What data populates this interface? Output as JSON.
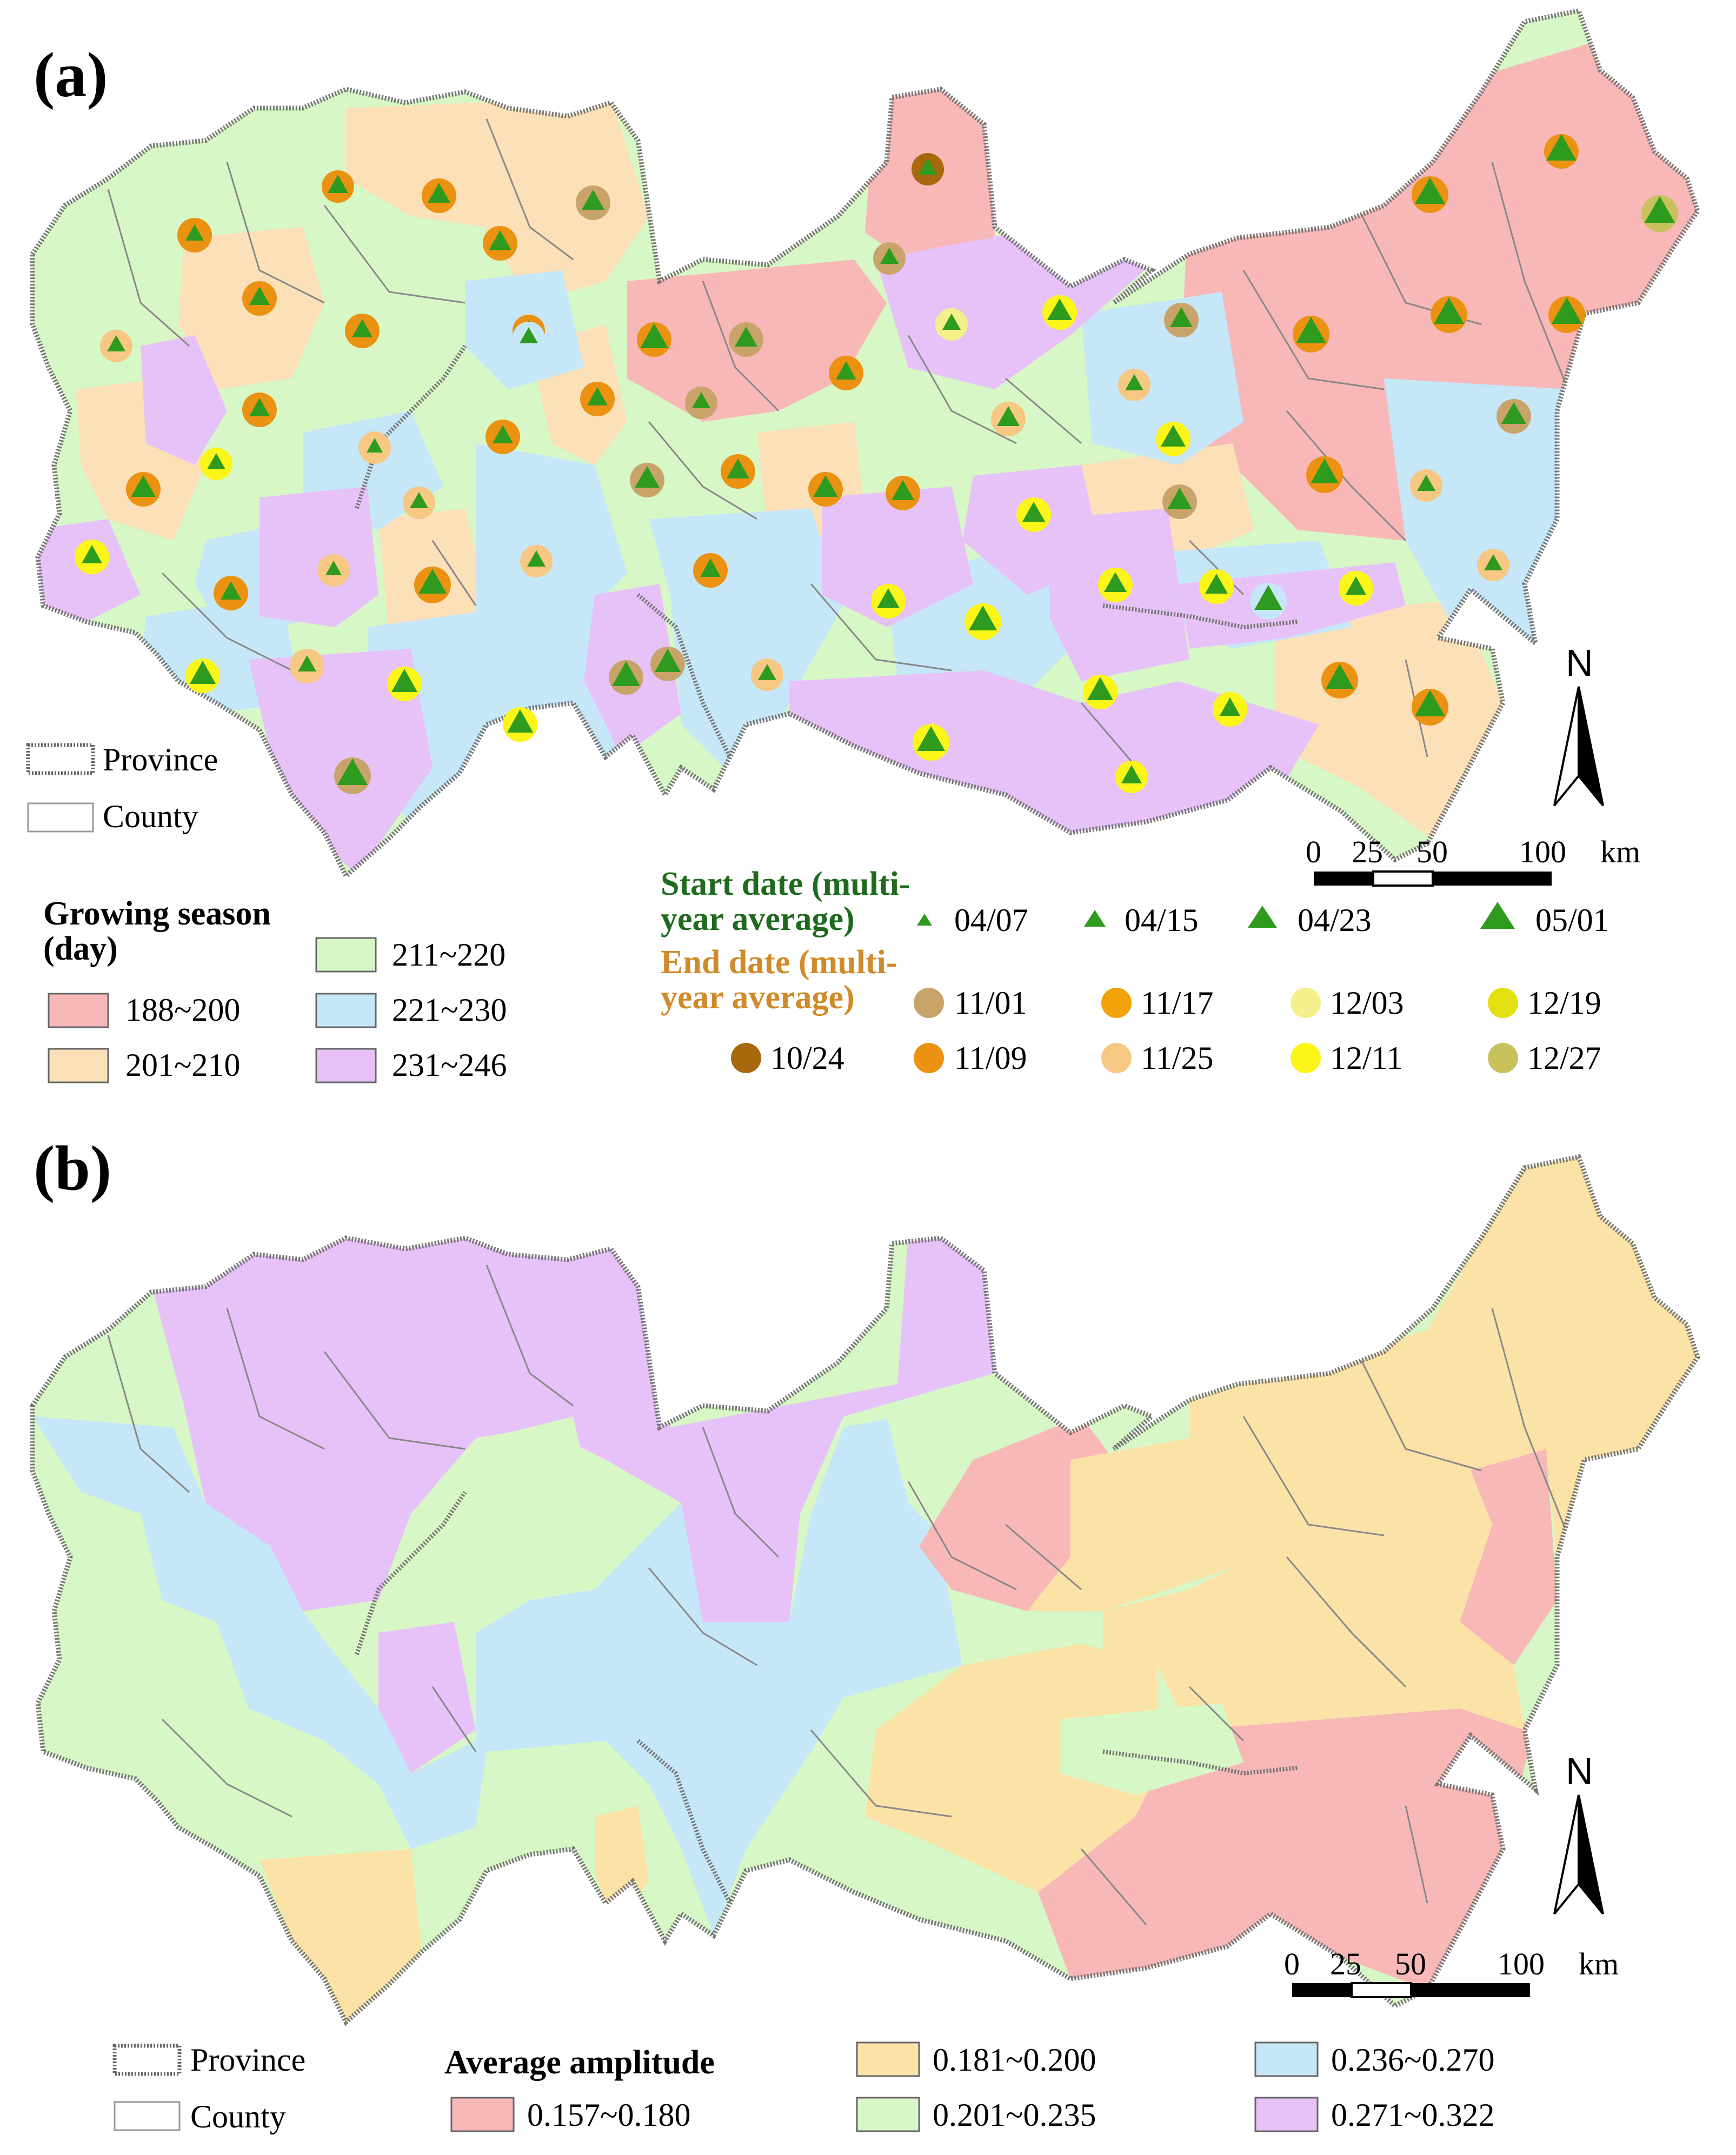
{
  "panel_a": {
    "label": "(a)",
    "legend_boundary": {
      "province": "Province",
      "county": "County"
    },
    "growing_season": {
      "title_line1": "Growing season",
      "title_line2": "(day)",
      "classes": [
        {
          "label": "188~200",
          "color": "#F8B8B8"
        },
        {
          "label": "201~210",
          "color": "#FBE0B8"
        },
        {
          "label": "211~220",
          "color": "#D8F7C6"
        },
        {
          "label": "221~230",
          "color": "#C6E7F8"
        },
        {
          "label": "231~246",
          "color": "#E7C2F8"
        }
      ]
    },
    "start_date": {
      "title_line1": "Start date (multi-",
      "title_line2": "year average)",
      "title_color": "#1E6B1E",
      "marker_color": "#2E9B1E",
      "items": [
        "04/07",
        "04/15",
        "04/23",
        "05/01"
      ]
    },
    "end_date": {
      "title_line1": "End date (multi-",
      "title_line2": "year average)",
      "title_color": "#D08A2A",
      "items": [
        {
          "label": "11/01",
          "color": "#C9A46A"
        },
        {
          "label": "11/17",
          "color": "#F2A20A"
        },
        {
          "label": "12/03",
          "color": "#F4F08C"
        },
        {
          "label": "12/19",
          "color": "#E3E012"
        },
        {
          "label": "10/24",
          "color": "#A8680E"
        },
        {
          "label": "11/09",
          "color": "#EB9212"
        },
        {
          "label": "11/25",
          "color": "#F6C884"
        },
        {
          "label": "12/11",
          "color": "#FBF51A"
        },
        {
          "label": "12/27",
          "color": "#C9C25C"
        }
      ]
    },
    "scale_bar": {
      "ticks": [
        "0",
        "25",
        "50",
        "100"
      ],
      "unit": "km"
    },
    "north": "N"
  },
  "panel_b": {
    "label": "(b)",
    "legend_boundary": {
      "province": "Province",
      "county": "County"
    },
    "amplitude": {
      "title": "Average amplitude",
      "classes": [
        {
          "label": "0.157~0.180",
          "color": "#F8B8B8"
        },
        {
          "label": "0.181~0.200",
          "color": "#FBE3A8"
        },
        {
          "label": "0.201~0.235",
          "color": "#D8F7C6"
        },
        {
          "label": "0.236~0.270",
          "color": "#C6E7F8"
        },
        {
          "label": "0.271~0.322",
          "color": "#E7C2F8"
        }
      ]
    },
    "scale_bar": {
      "ticks": [
        "0",
        "25",
        "50",
        "100"
      ],
      "unit": "km"
    },
    "north": "N"
  }
}
